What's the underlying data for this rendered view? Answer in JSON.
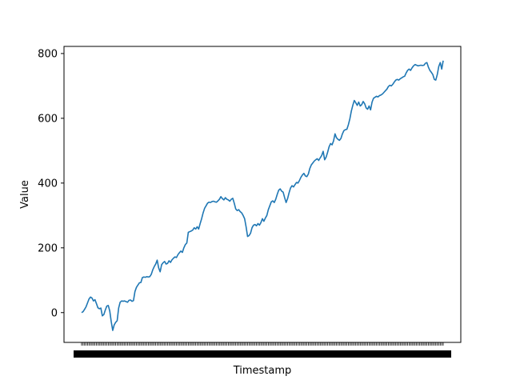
{
  "chart_data": {
    "type": "line",
    "title": "",
    "xlabel": "Timestamp",
    "ylabel": "Value",
    "ylim": [
      -92,
      822
    ],
    "grid": false,
    "legend": "none",
    "yticks": [
      0,
      200,
      400,
      600,
      800
    ],
    "x_tick_labels_note": "dense overlapping unreadable timestamp tick labels",
    "series": [
      {
        "color": "#1f77b4",
        "values": [
          0,
          3,
          10,
          18,
          30,
          42,
          48,
          45,
          36,
          40,
          28,
          15,
          12,
          14,
          -10,
          -6,
          8,
          20,
          22,
          5,
          -28,
          -55,
          -38,
          -30,
          -25,
          14,
          32,
          36,
          35,
          36,
          34,
          32,
          38,
          39,
          35,
          37,
          65,
          78,
          85,
          92,
          93,
          108,
          110,
          109,
          111,
          110,
          111,
          118,
          132,
          142,
          150,
          162,
          138,
          126,
          148,
          154,
          158,
          150,
          152,
          160,
          155,
          163,
          168,
          172,
          170,
          179,
          185,
          190,
          186,
          200,
          210,
          215,
          248,
          250,
          252,
          255,
          262,
          258,
          265,
          258,
          275,
          290,
          308,
          322,
          330,
          338,
          341,
          340,
          343,
          344,
          342,
          341,
          345,
          350,
          358,
          352,
          348,
          355,
          350,
          348,
          344,
          350,
          353,
          338,
          320,
          315,
          318,
          312,
          308,
          300,
          290,
          265,
          235,
          238,
          245,
          262,
          270,
          272,
          268,
          275,
          270,
          278,
          290,
          282,
          292,
          300,
          318,
          330,
          342,
          345,
          340,
          350,
          365,
          378,
          382,
          375,
          372,
          355,
          340,
          352,
          370,
          385,
          392,
          388,
          395,
          402,
          400,
          408,
          418,
          425,
          430,
          422,
          420,
          428,
          445,
          456,
          462,
          468,
          472,
          475,
          470,
          478,
          485,
          498,
          472,
          480,
          495,
          512,
          522,
          518,
          530,
          552,
          540,
          535,
          532,
          538,
          552,
          562,
          565,
          566,
          580,
          598,
          622,
          640,
          655,
          648,
          640,
          650,
          638,
          642,
          652,
          645,
          632,
          628,
          638,
          626,
          650,
          662,
          665,
          668,
          666,
          670,
          672,
          675,
          680,
          685,
          690,
          698,
          702,
          700,
          705,
          712,
          718,
          720,
          718,
          722,
          725,
          728,
          730,
          740,
          748,
          752,
          748,
          756,
          762,
          766,
          764,
          762,
          763,
          764,
          763,
          764,
          770,
          772,
          758,
          748,
          742,
          735,
          720,
          718,
          735,
          760,
          772,
          752,
          778
        ]
      }
    ]
  }
}
